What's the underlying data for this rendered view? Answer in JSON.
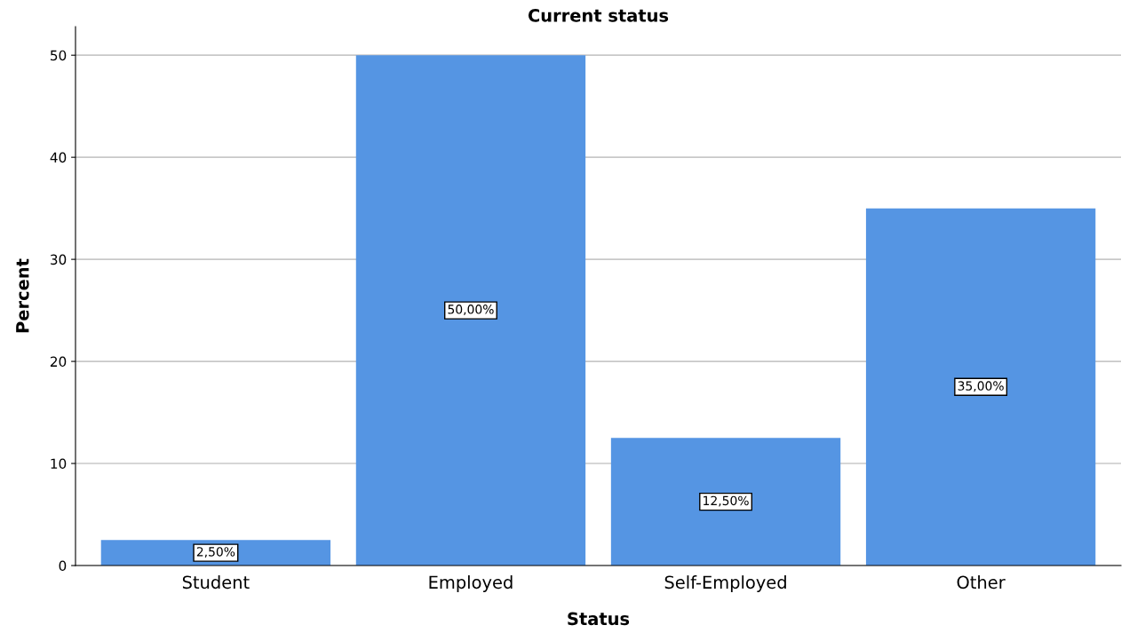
{
  "chart_data": {
    "type": "bar",
    "title": "Current status",
    "xlabel": "Status",
    "ylabel": "Percent",
    "categories": [
      "Student",
      "Employed",
      "Self-Employed",
      "Other"
    ],
    "values": [
      2.5,
      50,
      12.5,
      35
    ],
    "value_labels": [
      "2,50%",
      "50,00%",
      "12,50%",
      "35,00%"
    ],
    "color": "#5595e3",
    "ylim": [
      0,
      52.8
    ],
    "yticks": [
      0,
      10,
      20,
      30,
      40,
      50
    ],
    "grid": "y",
    "legend": false
  }
}
